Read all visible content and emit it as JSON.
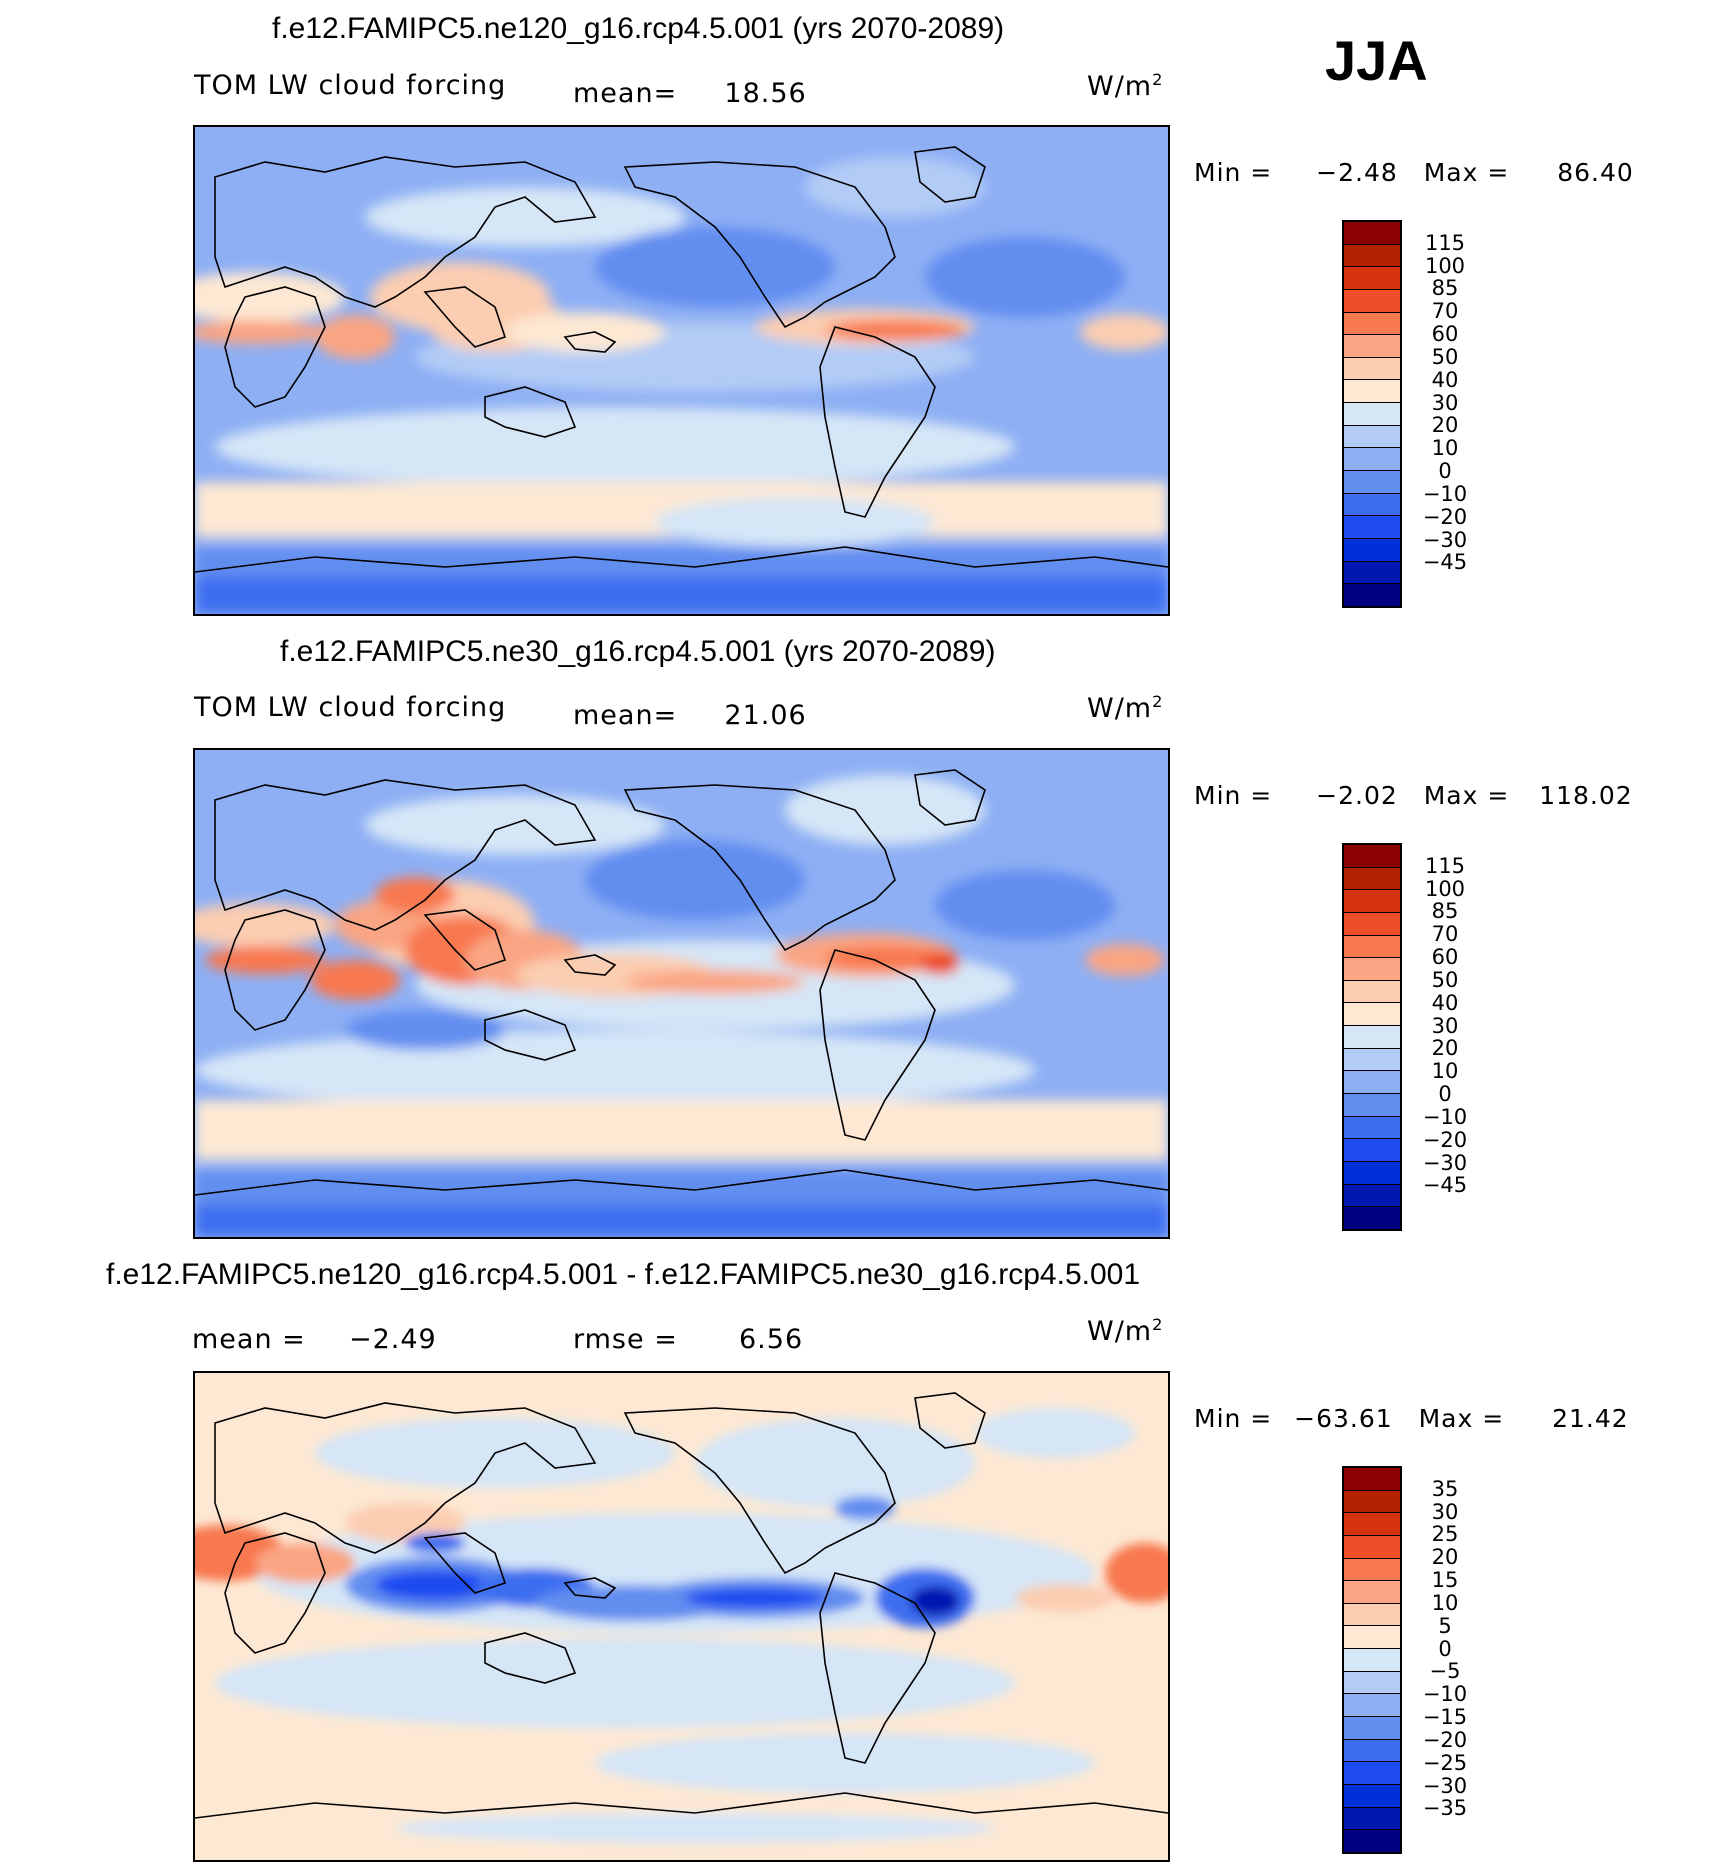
{
  "season": "JJA",
  "colors": {
    "abs_scale": [
      "#8b0000",
      "#b22200",
      "#d6340f",
      "#ee4f2a",
      "#f8784f",
      "#faa583",
      "#fbcdb1",
      "#fde8d3",
      "#d5e6f7",
      "#b2ccf6",
      "#8eaff4",
      "#628ef0",
      "#3e6ef0",
      "#1f4cf0",
      "#0030d8",
      "#0018b0",
      "#000080"
    ],
    "diff_scale": [
      "#8b0000",
      "#b22200",
      "#d6340f",
      "#ee4f2a",
      "#f8784f",
      "#faa583",
      "#fbcdb1",
      "#fde8d3",
      "#d5e6f7",
      "#b2ccf6",
      "#8eaff4",
      "#628ef0",
      "#3e6ef0",
      "#1f4cf0",
      "#0030d8",
      "#0018b0",
      "#000080"
    ]
  },
  "panels": [
    {
      "title": "f.e12.FAMIPC5.ne120_g16.rcp4.5.001 (yrs 2070-2089)",
      "field_label": "TOM LW cloud forcing",
      "mean_label": "mean=",
      "mean_value": "18.56",
      "units_base": "W/m",
      "units_sup": "2",
      "min_label": "Min =",
      "min_value": "−2.48",
      "max_label": "Max =",
      "max_value": "86.40",
      "ticks": [
        "115",
        "100",
        "85",
        "70",
        "60",
        "50",
        "40",
        "30",
        "20",
        "10",
        "0",
        "−10",
        "−20",
        "−30",
        "−45"
      ]
    },
    {
      "title": "f.e12.FAMIPC5.ne30_g16.rcp4.5.001 (yrs 2070-2089)",
      "field_label": "TOM LW cloud forcing",
      "mean_label": "mean=",
      "mean_value": "21.06",
      "units_base": "W/m",
      "units_sup": "2",
      "min_label": "Min =",
      "min_value": "−2.02",
      "max_label": "Max =",
      "max_value": "118.02",
      "ticks": [
        "115",
        "100",
        "85",
        "70",
        "60",
        "50",
        "40",
        "30",
        "20",
        "10",
        "0",
        "−10",
        "−20",
        "−30",
        "−45"
      ]
    },
    {
      "title": "f.e12.FAMIPC5.ne120_g16.rcp4.5.001 - f.e12.FAMIPC5.ne30_g16.rcp4.5.001",
      "mean_label": "mean =",
      "mean_value": "−2.49",
      "rmse_label": "rmse =",
      "rmse_value": "6.56",
      "units_base": "W/m",
      "units_sup": "2",
      "min_label": "Min =",
      "min_value": "−63.61",
      "max_label": "Max =",
      "max_value": "21.42",
      "ticks": [
        "35",
        "30",
        "25",
        "20",
        "15",
        "10",
        "5",
        "0",
        "−5",
        "−10",
        "−15",
        "−20",
        "−25",
        "−30",
        "−35"
      ]
    }
  ]
}
